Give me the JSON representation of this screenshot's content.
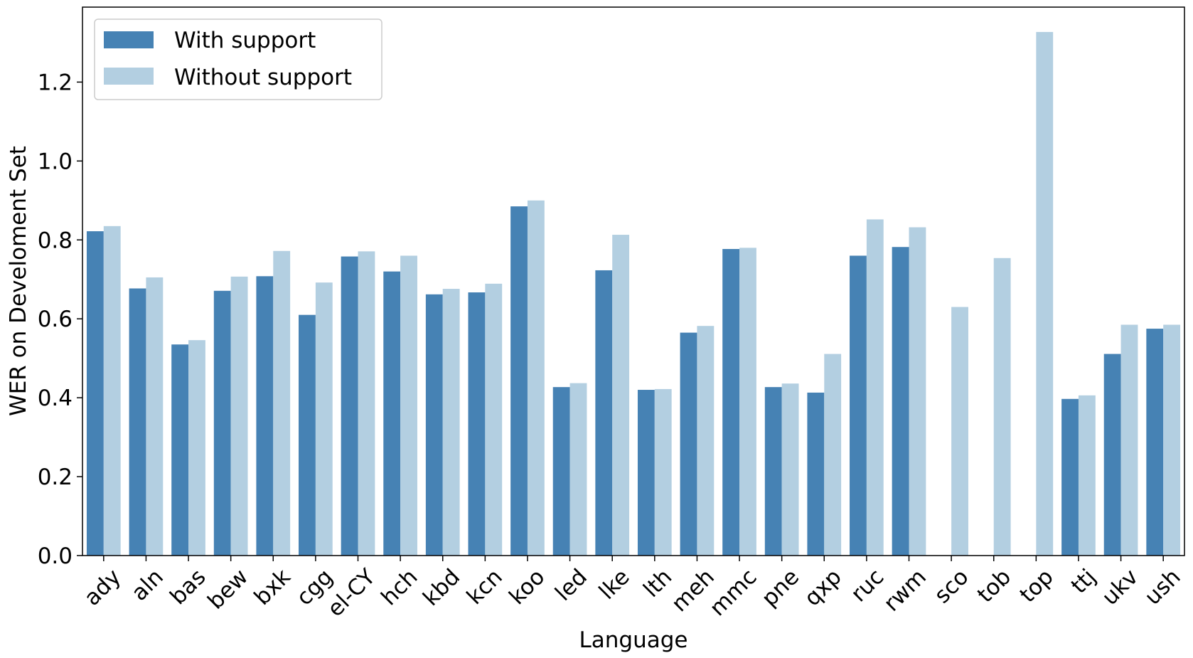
{
  "chart_data": {
    "type": "bar",
    "title": "",
    "xlabel": "Language",
    "ylabel": "WER on Develoment Set",
    "ylim": [
      0,
      1.39
    ],
    "yticks": [
      "0.0",
      "0.2",
      "0.4",
      "0.6",
      "0.8",
      "1.0",
      "1.2"
    ],
    "grid": false,
    "legend_position": "top-left",
    "categories": [
      "ady",
      "aln",
      "bas",
      "bew",
      "bxk",
      "cgg",
      "el-CY",
      "hch",
      "kbd",
      "kcn",
      "koo",
      "led",
      "lke",
      "lth",
      "meh",
      "mmc",
      "pne",
      "qxp",
      "ruc",
      "rwm",
      "sco",
      "tob",
      "top",
      "ttj",
      "ukv",
      "ush"
    ],
    "series": [
      {
        "name": "With support",
        "color": "#4682b4",
        "values": [
          0.822,
          0.677,
          0.535,
          0.671,
          0.708,
          0.61,
          0.758,
          0.72,
          0.662,
          0.667,
          0.885,
          0.427,
          0.723,
          0.42,
          0.565,
          0.777,
          0.427,
          0.413,
          0.76,
          0.782,
          null,
          null,
          null,
          0.397,
          0.511,
          0.575
        ]
      },
      {
        "name": "Without support",
        "color": "#b3cfe1",
        "values": [
          0.835,
          0.705,
          0.546,
          0.707,
          0.772,
          0.692,
          0.771,
          0.76,
          0.676,
          0.689,
          0.9,
          0.437,
          0.813,
          0.422,
          0.582,
          0.78,
          0.436,
          0.511,
          0.852,
          0.832,
          0.63,
          0.754,
          1.327,
          0.406,
          0.585,
          0.585
        ]
      }
    ]
  }
}
